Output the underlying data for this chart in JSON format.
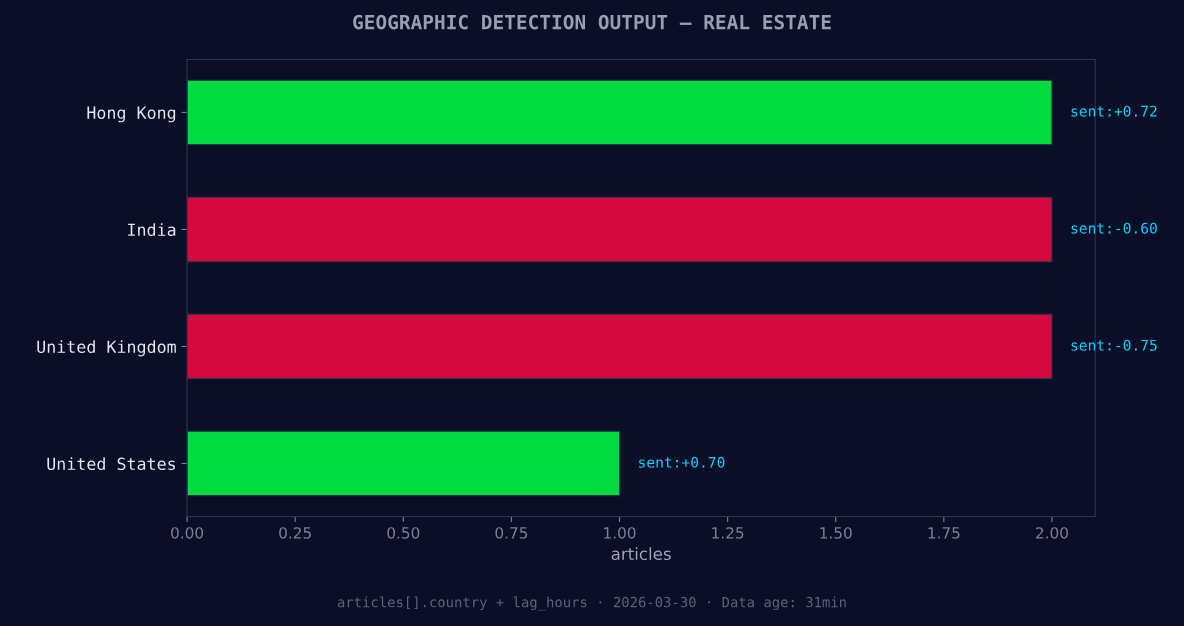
{
  "chart_data": {
    "type": "bar",
    "orientation": "horizontal",
    "title": "GEOGRAPHIC DETECTION OUTPUT — REAL ESTATE",
    "xlabel": "articles",
    "categories": [
      "Hong Kong",
      "India",
      "United Kingdom",
      "United States"
    ],
    "values": [
      2,
      2,
      2,
      1
    ],
    "colors": [
      "#00dc40",
      "#d6093e",
      "#d6093e",
      "#00dc40"
    ],
    "xlim": [
      0,
      2.1
    ],
    "xticks": [
      {
        "value": 0,
        "label": "0.00"
      },
      {
        "value": 0.25,
        "label": "0.25"
      },
      {
        "value": 0.5,
        "label": "0.50"
      },
      {
        "value": 0.75,
        "label": "0.75"
      },
      {
        "value": 1,
        "label": "1.00"
      },
      {
        "value": 1.25,
        "label": "1.25"
      },
      {
        "value": 1.5,
        "label": "1.50"
      },
      {
        "value": 1.75,
        "label": "1.75"
      },
      {
        "value": 2,
        "label": "2.00"
      }
    ],
    "grid": false,
    "legend": false,
    "annotations": [
      "sent:+0.72",
      "sent:-0.60",
      "sent:-0.75",
      "sent:+0.70",
      "articles[].country + lag_hours · 2026-03-30 · Data age: 31min"
    ]
  }
}
